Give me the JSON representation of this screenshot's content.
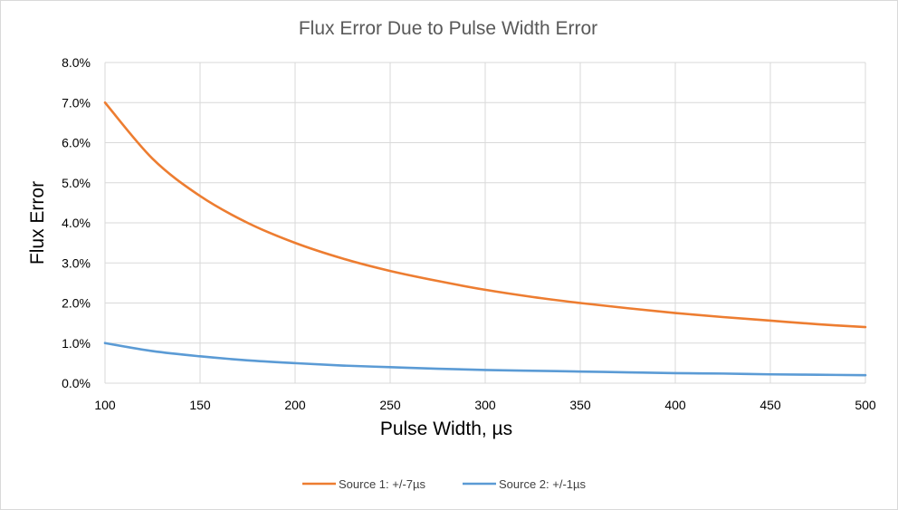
{
  "chart_data": {
    "type": "line",
    "title": "Flux Error Due to Pulse Width Error",
    "xlabel": "Pulse Width, µs",
    "ylabel": "Flux Error",
    "xlim": [
      100,
      500
    ],
    "ylim": [
      0,
      0.08
    ],
    "x_ticks": [
      100,
      150,
      200,
      250,
      300,
      350,
      400,
      450,
      500
    ],
    "y_ticks": [
      0,
      0.01,
      0.02,
      0.03,
      0.04,
      0.05,
      0.06,
      0.07,
      0.08
    ],
    "x_tick_labels": [
      "100",
      "150",
      "200",
      "250",
      "300",
      "350",
      "400",
      "450",
      "500"
    ],
    "y_tick_labels": [
      "0.0%",
      "1.0%",
      "2.0%",
      "3.0%",
      "4.0%",
      "5.0%",
      "6.0%",
      "7.0%",
      "8.0%"
    ],
    "grid": true,
    "legend_position": "bottom",
    "x": [
      100,
      125,
      150,
      175,
      200,
      225,
      250,
      275,
      300,
      325,
      350,
      375,
      400,
      425,
      450,
      475,
      500
    ],
    "series": [
      {
        "name": "Source 1: +/-7µs",
        "color": "#ed7d31",
        "values": [
          0.07,
          0.056,
          0.0467,
          0.04,
          0.035,
          0.0311,
          0.028,
          0.0255,
          0.0233,
          0.0215,
          0.02,
          0.0187,
          0.0175,
          0.0165,
          0.0156,
          0.0147,
          0.014
        ]
      },
      {
        "name": "Source 2: +/-1µs",
        "color": "#5b9bd5",
        "values": [
          0.01,
          0.008,
          0.0067,
          0.0057,
          0.005,
          0.0044,
          0.004,
          0.0036,
          0.0033,
          0.0031,
          0.0029,
          0.0027,
          0.0025,
          0.0024,
          0.0022,
          0.0021,
          0.002
        ]
      }
    ]
  }
}
